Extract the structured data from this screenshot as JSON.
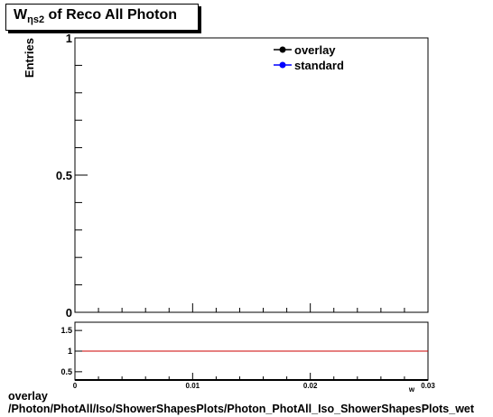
{
  "title": {
    "prefix": "W",
    "subscript": "ηs2",
    "suffix": " of Reco All Photon"
  },
  "footer": {
    "line1": "overlay",
    "line2": "/Photon/PhotAll/Iso/ShowerShapesPlots/Photon_PhotAll_Iso_ShowerShapesPlots_wet"
  },
  "colors": {
    "overlay": "#000000",
    "standard": "#0000ff",
    "ratio_line": "#cc0000"
  },
  "chart_data": [
    {
      "type": "line",
      "ylabel": "Entries",
      "xlabel": "",
      "xlim": [
        0,
        0.03
      ],
      "ylim": [
        0,
        1
      ],
      "y_ticks": [
        0,
        0.5,
        1
      ],
      "y_tick_labels": [
        "0",
        "0.5",
        "1"
      ],
      "legend_position": "top-right",
      "series": [
        {
          "name": "overlay",
          "x": [],
          "y": []
        },
        {
          "name": "standard",
          "x": [],
          "y": []
        }
      ]
    },
    {
      "type": "line",
      "xlabel": "w",
      "xlim": [
        0,
        0.03
      ],
      "ylim": [
        0.3,
        1.7
      ],
      "x_ticks": [
        0,
        0.01,
        0.02,
        0.03
      ],
      "x_tick_labels": [
        "0",
        "0.01",
        "0.02",
        "0.03"
      ],
      "y_ticks": [
        0.5,
        1,
        1.5
      ],
      "y_tick_labels": [
        "0.5",
        "1",
        "1.5"
      ],
      "reference_line": 1
    }
  ]
}
